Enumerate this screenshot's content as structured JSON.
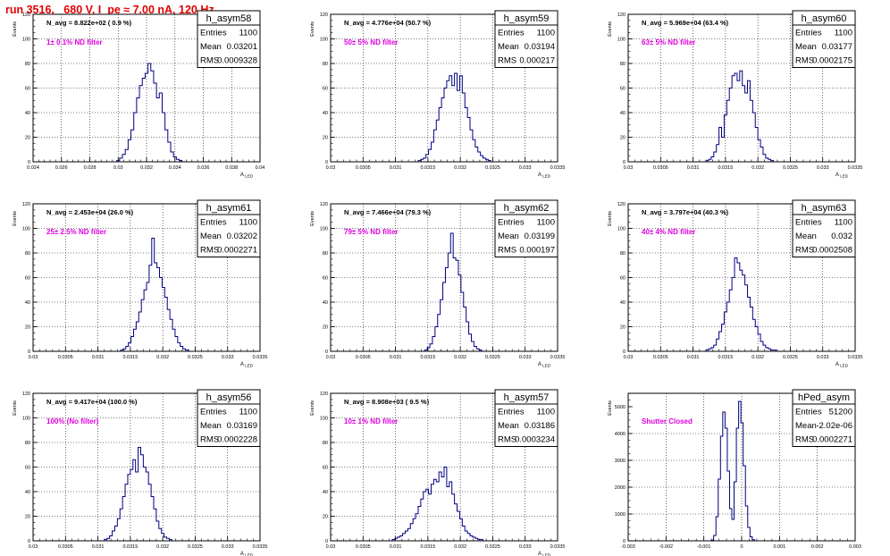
{
  "header": {
    "run_title": "run 3516,   680 V, I_pe ≈ 7.00 nA, 120 Hz"
  },
  "chart_data": [
    {
      "type": "histogram",
      "name": "h_asym58",
      "stats": {
        "entries_label": "Entries",
        "entries": "1100",
        "mean_label": "Mean",
        "mean": "0.03201",
        "rms_label": "RMS",
        "rms": "0.0009328"
      },
      "navg_text": "N_avg = 8.822e+02 ( 0.9 %)",
      "filter_text": "1± 0.1% ND filter",
      "xlabel": "A_LED",
      "ylabel": "Events",
      "xlim": [
        0.024,
        0.04
      ],
      "ylim": [
        0,
        120
      ],
      "xticks": [
        0.024,
        0.026,
        0.028,
        0.03,
        0.032,
        0.034,
        0.036,
        0.038,
        0.04
      ],
      "xtick_labels": [
        "0.024",
        "0.026",
        "0.028",
        "0.03",
        "0.032",
        "0.034",
        "0.036",
        "0.038",
        "0.04"
      ],
      "yticks": [
        0,
        20,
        40,
        60,
        80,
        100,
        120
      ],
      "bin_start": 0.0299,
      "bin_width": 0.0002,
      "counts": [
        1,
        3,
        6,
        10,
        18,
        26,
        40,
        52,
        62,
        68,
        72,
        80,
        74,
        64,
        52,
        56,
        40,
        26,
        16,
        8,
        4,
        2,
        1
      ]
    },
    {
      "type": "histogram",
      "name": "h_asym59",
      "stats": {
        "entries_label": "Entries",
        "entries": "1100",
        "mean_label": "Mean",
        "mean": "0.03194",
        "rms_label": "RMS",
        "rms": "0.000217"
      },
      "navg_text": "N_avg = 4.776e+04 (50.7 %)",
      "filter_text": "50± 5% ND filter",
      "xlabel": "A_LED",
      "ylabel": "Events",
      "xlim": [
        0.03,
        0.0335
      ],
      "ylim": [
        0,
        120
      ],
      "xticks": [
        0.03,
        0.0305,
        0.031,
        0.0315,
        0.032,
        0.0325,
        0.033,
        0.0335
      ],
      "xtick_labels": [
        "0.03",
        "0.0305",
        "0.031",
        "0.0315",
        "0.032",
        "0.0325",
        "0.033",
        "0.0335"
      ],
      "yticks": [
        0,
        20,
        40,
        60,
        80,
        100,
        120
      ],
      "bin_start": 0.03135,
      "bin_width": 4e-05,
      "counts": [
        1,
        2,
        3,
        6,
        10,
        16,
        26,
        34,
        44,
        52,
        60,
        66,
        70,
        62,
        72,
        58,
        70,
        56,
        44,
        36,
        26,
        18,
        12,
        8,
        5,
        3,
        2,
        1
      ]
    },
    {
      "type": "histogram",
      "name": "h_asym60",
      "stats": {
        "entries_label": "Entries",
        "entries": "1100",
        "mean_label": "Mean",
        "mean": "0.03177",
        "rms_label": "RMS",
        "rms": "0.0002175"
      },
      "navg_text": "N_avg = 5.969e+04 (63.4 %)",
      "filter_text": "63± 5% ND filter",
      "xlabel": "A_LED",
      "ylabel": "Events",
      "xlim": [
        0.03,
        0.0335
      ],
      "ylim": [
        0,
        120
      ],
      "xticks": [
        0.03,
        0.0305,
        0.031,
        0.0315,
        0.032,
        0.0325,
        0.033,
        0.0335
      ],
      "xtick_labels": [
        "0.03",
        "0.0305",
        "0.031",
        "0.0315",
        "0.032",
        "0.0325",
        "0.033",
        "0.0335"
      ],
      "yticks": [
        0,
        20,
        40,
        60,
        80,
        100,
        120
      ],
      "bin_start": 0.0312,
      "bin_width": 4e-05,
      "counts": [
        1,
        2,
        4,
        8,
        14,
        28,
        20,
        38,
        50,
        60,
        70,
        72,
        66,
        74,
        62,
        56,
        66,
        50,
        40,
        28,
        18,
        12,
        6,
        3,
        2,
        1
      ]
    },
    {
      "type": "histogram",
      "name": "h_asym61",
      "stats": {
        "entries_label": "Entries",
        "entries": "1100",
        "mean_label": "Mean",
        "mean": "0.03202",
        "rms_label": "RMS",
        "rms": "0.0002271"
      },
      "navg_text": "N_avg = 2.453e+04 (26.0 %)",
      "filter_text": "25± 2.5% ND filter",
      "xlabel": "A_LED",
      "ylabel": "Events",
      "xlim": [
        0.03,
        0.0335
      ],
      "ylim": [
        0,
        120
      ],
      "xticks": [
        0.03,
        0.0305,
        0.031,
        0.0315,
        0.032,
        0.0325,
        0.033,
        0.0335
      ],
      "xtick_labels": [
        "0.03",
        "0.0305",
        "0.031",
        "0.0315",
        "0.032",
        "0.0325",
        "0.033",
        "0.0335"
      ],
      "yticks": [
        0,
        20,
        40,
        60,
        80,
        100,
        120
      ],
      "bin_start": 0.03135,
      "bin_width": 4e-05,
      "counts": [
        1,
        2,
        4,
        7,
        12,
        18,
        24,
        32,
        42,
        50,
        56,
        70,
        92,
        72,
        68,
        60,
        52,
        44,
        34,
        26,
        18,
        12,
        7,
        4,
        2,
        1
      ]
    },
    {
      "type": "histogram",
      "name": "h_asym62",
      "stats": {
        "entries_label": "Entries",
        "entries": "1100",
        "mean_label": "Mean",
        "mean": "0.03199",
        "rms_label": "RMS",
        "rms": "0.000197"
      },
      "navg_text": "N_avg = 7.466e+04 (79.3 %)",
      "filter_text": "79± 5% ND filter",
      "xlabel": "A_LED",
      "ylabel": "Events",
      "xlim": [
        0.03,
        0.0335
      ],
      "ylim": [
        0,
        120
      ],
      "xticks": [
        0.03,
        0.0305,
        0.031,
        0.0315,
        0.032,
        0.0325,
        0.033,
        0.0335
      ],
      "xtick_labels": [
        "0.03",
        "0.0305",
        "0.031",
        "0.0315",
        "0.032",
        "0.0325",
        "0.033",
        "0.0335"
      ],
      "yticks": [
        0,
        20,
        40,
        60,
        80,
        100,
        120
      ],
      "bin_start": 0.03145,
      "bin_width": 4e-05,
      "counts": [
        1,
        3,
        6,
        12,
        20,
        30,
        42,
        56,
        68,
        80,
        96,
        76,
        74,
        62,
        48,
        36,
        24,
        14,
        8,
        4,
        2,
        1
      ]
    },
    {
      "type": "histogram",
      "name": "h_asym63",
      "stats": {
        "entries_label": "Entries",
        "entries": "1100",
        "mean_label": "Mean",
        "mean": "0.032",
        "rms_label": "RMS",
        "rms": "0.0002508"
      },
      "navg_text": "N_avg = 3.797e+04 (40.3 %)",
      "filter_text": "40± 4% ND filter",
      "xlabel": "A_LED",
      "ylabel": "Events",
      "xlim": [
        0.03,
        0.0335
      ],
      "ylim": [
        0,
        120
      ],
      "xticks": [
        0.03,
        0.0305,
        0.031,
        0.0315,
        0.032,
        0.0325,
        0.033,
        0.0335
      ],
      "xtick_labels": [
        "0.03",
        "0.0305",
        "0.031",
        "0.0315",
        "0.032",
        "0.0325",
        "0.033",
        "0.0335"
      ],
      "yticks": [
        0,
        20,
        40,
        60,
        80,
        100,
        120
      ],
      "bin_start": 0.0312,
      "bin_width": 4e-05,
      "counts": [
        1,
        2,
        3,
        5,
        10,
        16,
        22,
        32,
        40,
        50,
        60,
        76,
        72,
        66,
        62,
        54,
        44,
        36,
        26,
        20,
        14,
        8,
        5,
        3,
        2,
        1,
        1
      ]
    },
    {
      "type": "histogram",
      "name": "h_asym56",
      "stats": {
        "entries_label": "Entries",
        "entries": "1100",
        "mean_label": "Mean",
        "mean": "0.03169",
        "rms_label": "RMS",
        "rms": "0.0002228"
      },
      "navg_text": "N_avg = 9.417e+04 (100.0 %)",
      "filter_text": "100% (No filter)",
      "xlabel": "A_LED",
      "ylabel": "Events",
      "xlim": [
        0.03,
        0.0335
      ],
      "ylim": [
        0,
        120
      ],
      "xticks": [
        0.03,
        0.0305,
        0.031,
        0.0315,
        0.032,
        0.0325,
        0.033,
        0.0335
      ],
      "xtick_labels": [
        "0.03",
        "0.0305",
        "0.031",
        "0.0315",
        "0.032",
        "0.0325",
        "0.033",
        "0.0335"
      ],
      "yticks": [
        0,
        20,
        40,
        60,
        80,
        100,
        120
      ],
      "bin_start": 0.0311,
      "bin_width": 4e-05,
      "counts": [
        1,
        2,
        4,
        8,
        12,
        18,
        26,
        36,
        46,
        54,
        58,
        66,
        56,
        76,
        70,
        60,
        56,
        46,
        36,
        26,
        16,
        10,
        6,
        3,
        2,
        1
      ]
    },
    {
      "type": "histogram",
      "name": "h_asym57",
      "stats": {
        "entries_label": "Entries",
        "entries": "1100",
        "mean_label": "Mean",
        "mean": "0.03186",
        "rms_label": "RMS",
        "rms": "0.0003234"
      },
      "navg_text": "N_avg = 8.908e+03 ( 9.5 %)",
      "filter_text": "10± 1% ND filter",
      "xlabel": "A_LED",
      "ylabel": "Events",
      "xlim": [
        0.03,
        0.0335
      ],
      "ylim": [
        0,
        120
      ],
      "xticks": [
        0.03,
        0.0305,
        0.031,
        0.0315,
        0.032,
        0.0325,
        0.033,
        0.0335
      ],
      "xtick_labels": [
        "0.03",
        "0.0305",
        "0.031",
        "0.0315",
        "0.032",
        "0.0325",
        "0.033",
        "0.0335"
      ],
      "yticks": [
        0,
        20,
        40,
        60,
        80,
        100,
        120
      ],
      "bin_start": 0.03095,
      "bin_width": 4e-05,
      "counts": [
        1,
        2,
        3,
        4,
        6,
        8,
        10,
        14,
        18,
        22,
        28,
        34,
        40,
        42,
        38,
        46,
        50,
        48,
        56,
        52,
        60,
        44,
        48,
        38,
        30,
        24,
        18,
        12,
        8,
        6,
        4,
        3,
        2,
        1,
        1
      ]
    },
    {
      "type": "histogram",
      "name": "hPed_asym",
      "stats": {
        "entries_label": "Entries",
        "entries": "51200",
        "mean_label": "Mean",
        "mean": "-2.02e-06",
        "rms_label": "RMS",
        "rms": "0.0002271"
      },
      "navg_text": "",
      "filter_text": "Shutter Closed",
      "xlabel": "",
      "ylabel": "Events",
      "xlim": [
        -0.003,
        0.003
      ],
      "ylim": [
        0,
        5500
      ],
      "xticks": [
        -0.003,
        -0.002,
        -0.001,
        0,
        0.001,
        0.002,
        0.003
      ],
      "xtick_labels": [
        "-0.003",
        "-0.002",
        "-0.001",
        "0",
        "0.001",
        "0.002",
        "0.003"
      ],
      "yticks": [
        0,
        1000,
        2000,
        3000,
        4000,
        5000
      ],
      "bin_start": -0.0008,
      "bin_width": 6e-05,
      "counts": [
        30,
        200,
        900,
        2300,
        3900,
        4800,
        4200,
        2600,
        1200,
        800,
        2200,
        4200,
        5200,
        4400,
        2800,
        1300,
        500,
        150,
        40
      ]
    }
  ]
}
